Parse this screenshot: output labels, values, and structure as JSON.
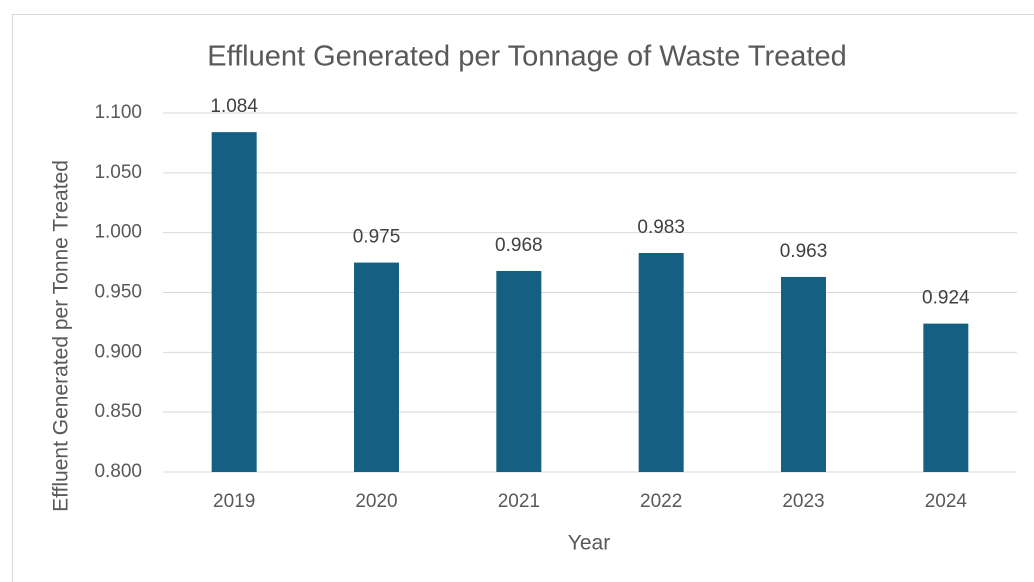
{
  "chart_data": {
    "type": "bar",
    "title": "Effluent Generated per Tonnage of Waste Treated",
    "x_label": "Year",
    "y_label": "Effluent Generated per Tonne Treated",
    "categories": [
      "2019",
      "2020",
      "2021",
      "2022",
      "2023",
      "2024"
    ],
    "values": [
      1.084,
      0.975,
      0.968,
      0.983,
      0.963,
      0.924
    ],
    "color": "#156082",
    "ylim": [
      0.8,
      1.1
    ],
    "yticks": [
      {
        "value": 0.8,
        "label": "0.800"
      },
      {
        "value": 0.85,
        "label": "0.850"
      },
      {
        "value": 0.9,
        "label": "0.900"
      },
      {
        "value": 0.95,
        "label": "0.950"
      },
      {
        "value": 1.0,
        "label": "1.000"
      },
      {
        "value": 1.05,
        "label": "1.050"
      },
      {
        "value": 1.1,
        "label": "1.100"
      }
    ],
    "grid": true
  }
}
